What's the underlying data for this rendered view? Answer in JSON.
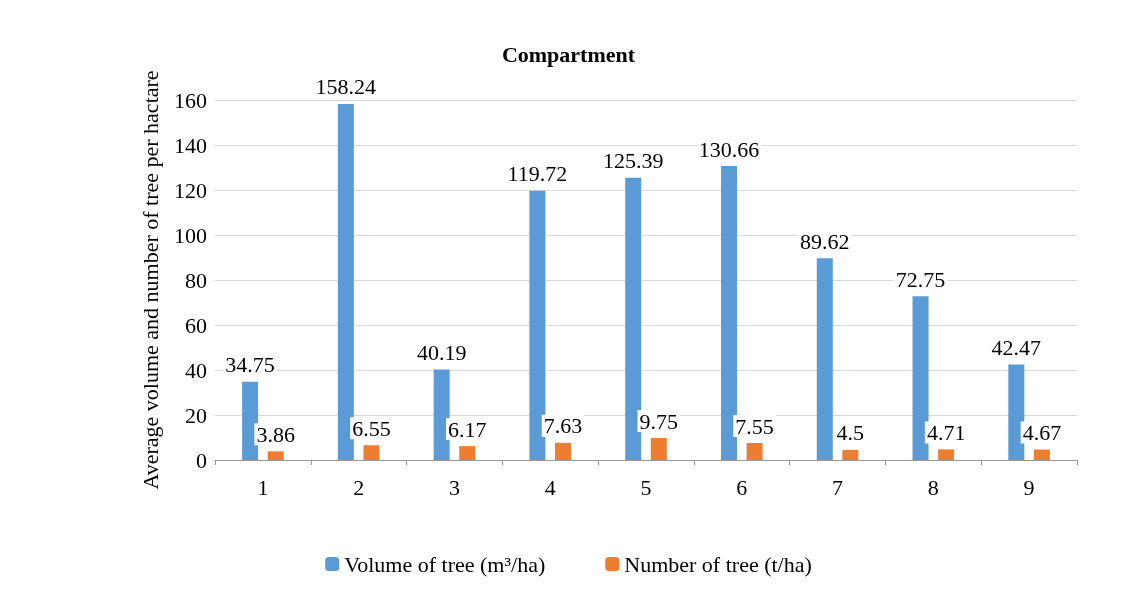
{
  "chart_data": {
    "type": "bar",
    "title": "Compartment",
    "ylabel": "Average volume and number of tree per hactare",
    "categories": [
      "1",
      "2",
      "3",
      "4",
      "5",
      "6",
      "7",
      "8",
      "9"
    ],
    "series": [
      {
        "name": "Volume of tree (m³/ha)",
        "color": "#5b9bd5",
        "values": [
          34.75,
          158.24,
          40.19,
          119.72,
          125.39,
          130.66,
          89.62,
          72.75,
          42.47
        ]
      },
      {
        "name": "Number of tree (t/ha)",
        "color": "#ed7d31",
        "values": [
          3.86,
          6.55,
          6.17,
          7.63,
          9.75,
          7.55,
          4.5,
          4.71,
          4.67
        ]
      }
    ],
    "ylim": [
      0,
      160
    ],
    "yticks": [
      0,
      20,
      40,
      60,
      80,
      100,
      120,
      140,
      160
    ],
    "grid": "y",
    "legend": "bottom",
    "data_labels": true
  }
}
